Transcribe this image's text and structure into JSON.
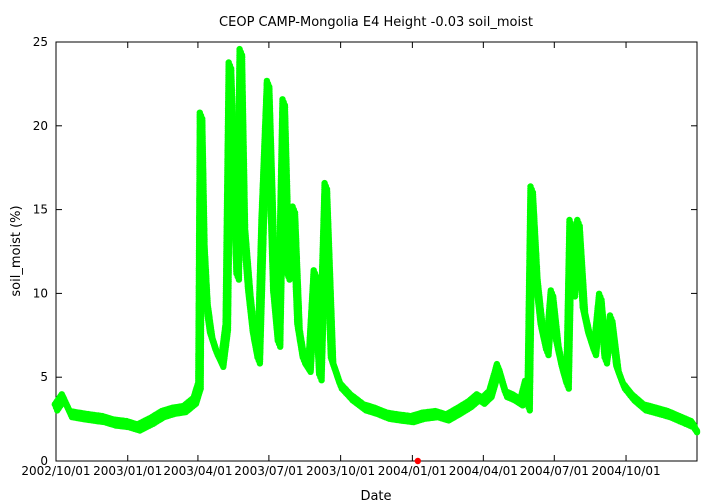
{
  "chart_data": {
    "type": "scatter",
    "title": "CEOP CAMP-Mongolia E4 Height -0.03 soil_moist",
    "xlabel": "Date",
    "ylabel": "soil_moist (%)",
    "xlim": [
      "2002-10-01",
      "2004-12-31"
    ],
    "ylim": [
      0,
      25
    ],
    "x_ticks": [
      "2002/10/01",
      "2003/01/01",
      "2003/04/01",
      "2003/07/01",
      "2003/10/01",
      "2004/01/01",
      "2004/04/01",
      "2004/07/01",
      "2004/10/01"
    ],
    "y_ticks": [
      0,
      5,
      10,
      15,
      20,
      25
    ],
    "grid": false,
    "legend": "none",
    "series": [
      {
        "color": "#00ff00",
        "x": [
          "2002-10-01",
          "2002-10-10",
          "2002-10-20",
          "2002-11-01",
          "2002-11-15",
          "2002-12-01",
          "2002-12-15",
          "2003-01-01",
          "2003-01-15",
          "2003-02-01",
          "2003-02-15",
          "2003-03-01",
          "2003-03-15",
          "2003-03-28",
          "2003-04-03",
          "2003-04-05",
          "2003-04-08",
          "2003-04-12",
          "2003-04-18",
          "2003-04-25",
          "2003-05-02",
          "2003-05-08",
          "2003-05-12",
          "2003-05-17",
          "2003-05-22",
          "2003-05-26",
          "2003-05-30",
          "2003-06-06",
          "2003-06-12",
          "2003-06-18",
          "2003-06-23",
          "2003-06-30",
          "2003-07-08",
          "2003-07-14",
          "2003-07-20",
          "2003-07-26",
          "2003-08-02",
          "2003-08-08",
          "2003-08-15",
          "2003-08-22",
          "2003-08-29",
          "2003-09-05",
          "2003-09-12",
          "2003-09-20",
          "2003-10-01",
          "2003-10-15",
          "2003-11-01",
          "2003-11-15",
          "2003-12-01",
          "2003-12-15",
          "2004-01-01",
          "2004-01-15",
          "2004-02-01",
          "2004-02-15",
          "2004-03-01",
          "2004-03-15",
          "2004-03-25",
          "2004-04-01",
          "2004-04-10",
          "2004-04-20",
          "2004-04-30",
          "2004-05-10",
          "2004-05-20",
          "2004-05-26",
          "2004-05-29",
          "2004-06-02",
          "2004-06-08",
          "2004-06-15",
          "2004-06-22",
          "2004-06-28",
          "2004-07-05",
          "2004-07-12",
          "2004-07-18",
          "2004-07-22",
          "2004-07-26",
          "2004-08-01",
          "2004-08-08",
          "2004-08-15",
          "2004-08-22",
          "2004-08-29",
          "2004-09-05",
          "2004-09-12",
          "2004-09-20",
          "2004-09-28",
          "2004-10-10",
          "2004-10-25",
          "2004-11-10",
          "2004-11-25",
          "2004-12-10",
          "2004-12-25",
          "2004-12-31"
        ],
        "y": [
          3.2,
          3.8,
          2.8,
          2.7,
          2.6,
          2.5,
          2.3,
          2.2,
          2.0,
          2.4,
          2.8,
          3.0,
          3.1,
          3.6,
          4.5,
          20.6,
          13.0,
          9.5,
          7.5,
          6.5,
          5.8,
          8.0,
          23.6,
          17.0,
          11.0,
          24.4,
          14.0,
          10.0,
          7.5,
          6.0,
          14.2,
          22.5,
          10.0,
          7.0,
          21.4,
          11.0,
          15.0,
          8.0,
          6.0,
          5.5,
          11.2,
          5.0,
          16.4,
          6.0,
          4.5,
          3.8,
          3.2,
          3.0,
          2.7,
          2.6,
          2.5,
          2.7,
          2.8,
          2.6,
          3.0,
          3.4,
          3.8,
          3.6,
          4.0,
          5.6,
          4.0,
          3.8,
          3.5,
          4.6,
          3.2,
          16.2,
          11.0,
          8.0,
          6.5,
          10.0,
          7.0,
          5.5,
          4.5,
          14.2,
          10.0,
          14.2,
          9.0,
          7.5,
          6.5,
          9.8,
          6.0,
          8.5,
          5.5,
          4.5,
          3.8,
          3.2,
          3.0,
          2.8,
          2.5,
          2.2,
          1.8
        ]
      },
      {
        "color": "#ff0000",
        "x": [
          "2004-01-08"
        ],
        "y": [
          0
        ]
      }
    ]
  }
}
